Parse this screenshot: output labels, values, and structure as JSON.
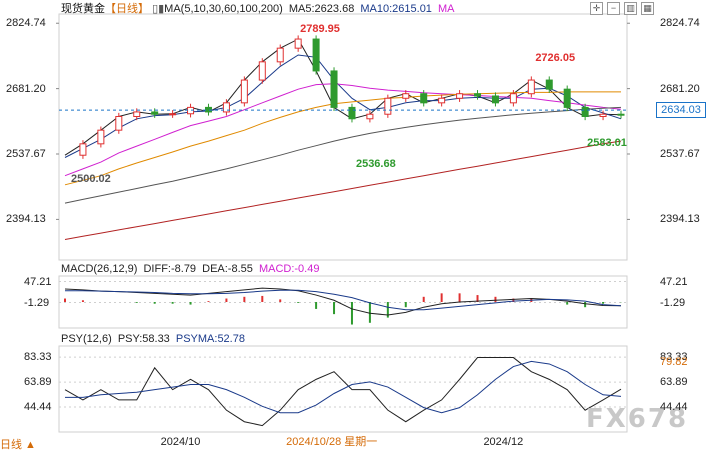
{
  "header": {
    "symbol": "现货黄金",
    "period": "【日线】",
    "ma_title": "MA(5,10,30,60,100,200)",
    "ma5_label": "MA5:2623.68",
    "ma10_label": "MA10:2615.01",
    "ma_extra": "MA"
  },
  "macd": {
    "title": "MACD(26,12,9)",
    "diff_label": "DIFF:-8.79",
    "dea_label": "DEA:-8.55",
    "macd_label": "MACD:-0.49"
  },
  "psy": {
    "title": "PSY(12,6)",
    "psy_label": "PSY:58.33",
    "psyma_label": "PSYMA:52.78"
  },
  "price_tag": "2634.03",
  "period_tab": "日线 ▲",
  "watermark": "FX678",
  "colors": {
    "up": "#e03030",
    "down": "#2e9a2e",
    "ma5": "#222222",
    "ma10": "#1a3a8a",
    "ma30": "#d020d0",
    "ma60": "#e08a00",
    "ma100": "#555555",
    "ma200": "#b22222",
    "price_line": "#1a73c8"
  },
  "chart_data": {
    "type": "candlestick",
    "series": [
      {
        "name": "MA5",
        "values": [
          2535,
          2560,
          2590,
          2620,
          2630,
          2625,
          2626,
          2640,
          2630,
          2650,
          2700,
          2740,
          2770,
          2790,
          2720,
          2640,
          2615,
          2625,
          2660,
          2670,
          2650,
          2660,
          2670,
          2665,
          2650,
          2670,
          2700,
          2680,
          2640,
          2620,
          2625,
          2623.68
        ]
      },
      {
        "name": "MA10",
        "values": [
          2530,
          2550,
          2570,
          2595,
          2615,
          2622,
          2624,
          2630,
          2632,
          2640,
          2660,
          2695,
          2730,
          2755,
          2750,
          2700,
          2660,
          2635,
          2640,
          2650,
          2655,
          2655,
          2660,
          2662,
          2660,
          2660,
          2680,
          2682,
          2665,
          2640,
          2628,
          2615.01
        ]
      },
      {
        "name": "MA30",
        "values": [
          2490,
          2505,
          2520,
          2540,
          2555,
          2570,
          2585,
          2600,
          2610,
          2620,
          2635,
          2650,
          2665,
          2680,
          2690,
          2692,
          2688,
          2682,
          2678,
          2675,
          2672,
          2670,
          2668,
          2666,
          2664,
          2662,
          2660,
          2655,
          2650,
          2645,
          2640,
          2636
        ]
      },
      {
        "name": "MA60",
        "values": [
          2470,
          2480,
          2490,
          2505,
          2518,
          2530,
          2542,
          2555,
          2566,
          2578,
          2590,
          2605,
          2618,
          2630,
          2640,
          2648,
          2652,
          2656,
          2660,
          2662,
          2665,
          2667,
          2669,
          2670,
          2671,
          2672,
          2673,
          2673,
          2674,
          2674,
          2674,
          2674
        ]
      },
      {
        "name": "MA100",
        "values": [
          2430,
          2438,
          2446,
          2454,
          2462,
          2470,
          2478,
          2487,
          2496,
          2505,
          2515,
          2525,
          2535,
          2546,
          2556,
          2566,
          2575,
          2583,
          2590,
          2596,
          2602,
          2607,
          2612,
          2616,
          2620,
          2624,
          2627,
          2630,
          2633,
          2636,
          2638,
          2640
        ]
      },
      {
        "name": "MA200",
        "values": [
          2350,
          2357,
          2364,
          2371,
          2378,
          2385,
          2392,
          2399,
          2406,
          2413,
          2420,
          2427,
          2434,
          2441,
          2448,
          2455,
          2462,
          2469,
          2476,
          2483,
          2490,
          2497,
          2504,
          2511,
          2518,
          2525,
          2532,
          2539,
          2546,
          2553,
          2560,
          2566
        ]
      }
    ],
    "y_ticks": [
      "2824.74",
      "2681.20",
      "2537.67",
      "2394.13"
    ],
    "ylim": [
      2305,
      2845
    ],
    "annotations": [
      {
        "text": "2789.95",
        "value": 2789.95
      },
      {
        "text": "2726.05",
        "value": 2726.05
      },
      {
        "text": "2500.02",
        "value": 2500.02
      },
      {
        "text": "2536.68",
        "value": 2536.68
      },
      {
        "text": "2583.01",
        "value": 2583.01
      }
    ],
    "x_labels": [
      "2024/10",
      "2024/10/28 星期一",
      "2024/12"
    ],
    "macd_ticks": [
      "47.21",
      "-1.29"
    ],
    "macd_ylim": [
      -60,
      60
    ],
    "macd_diff": [
      30,
      28,
      25,
      24,
      22,
      20,
      18,
      16,
      20,
      24,
      28,
      32,
      30,
      26,
      16,
      4,
      -16,
      -26,
      -30,
      -24,
      -12,
      -4,
      0,
      2,
      4,
      6,
      8,
      6,
      2,
      -4,
      -8,
      -8.79
    ],
    "macd_dea": [
      26,
      26,
      25,
      24,
      23,
      22,
      20,
      19,
      19,
      20,
      22,
      25,
      27,
      27,
      24,
      18,
      10,
      -2,
      -12,
      -18,
      -18,
      -14,
      -10,
      -6,
      -2,
      2,
      4,
      6,
      5,
      2,
      -6,
      -8.55
    ],
    "macd_hist": [
      8,
      4,
      0,
      0,
      -2,
      -4,
      -4,
      -6,
      2,
      8,
      12,
      14,
      6,
      -2,
      -16,
      -28,
      -52,
      -48,
      -36,
      -12,
      12,
      20,
      20,
      16,
      12,
      8,
      8,
      0,
      -6,
      -12,
      -4,
      -0.49
    ],
    "psy_ticks": [
      "83.33",
      "63.89",
      "44.44"
    ],
    "psy_ylim": [
      25,
      92
    ],
    "psy_marker": "79.82",
    "psy_values": [
      58,
      50,
      58,
      50,
      50,
      75,
      58,
      66,
      58,
      42,
      33,
      30,
      42,
      58,
      66,
      72,
      58,
      58,
      42,
      33,
      42,
      50,
      66,
      83,
      83,
      83,
      72,
      66,
      58,
      42,
      50,
      58.33
    ],
    "psyma_values": [
      52,
      52,
      54,
      55,
      56,
      58,
      60,
      62,
      62,
      58,
      52,
      45,
      40,
      40,
      46,
      55,
      62,
      64,
      60,
      52,
      44,
      40,
      44,
      54,
      66,
      76,
      80,
      78,
      72,
      62,
      54,
      52.78
    ]
  }
}
